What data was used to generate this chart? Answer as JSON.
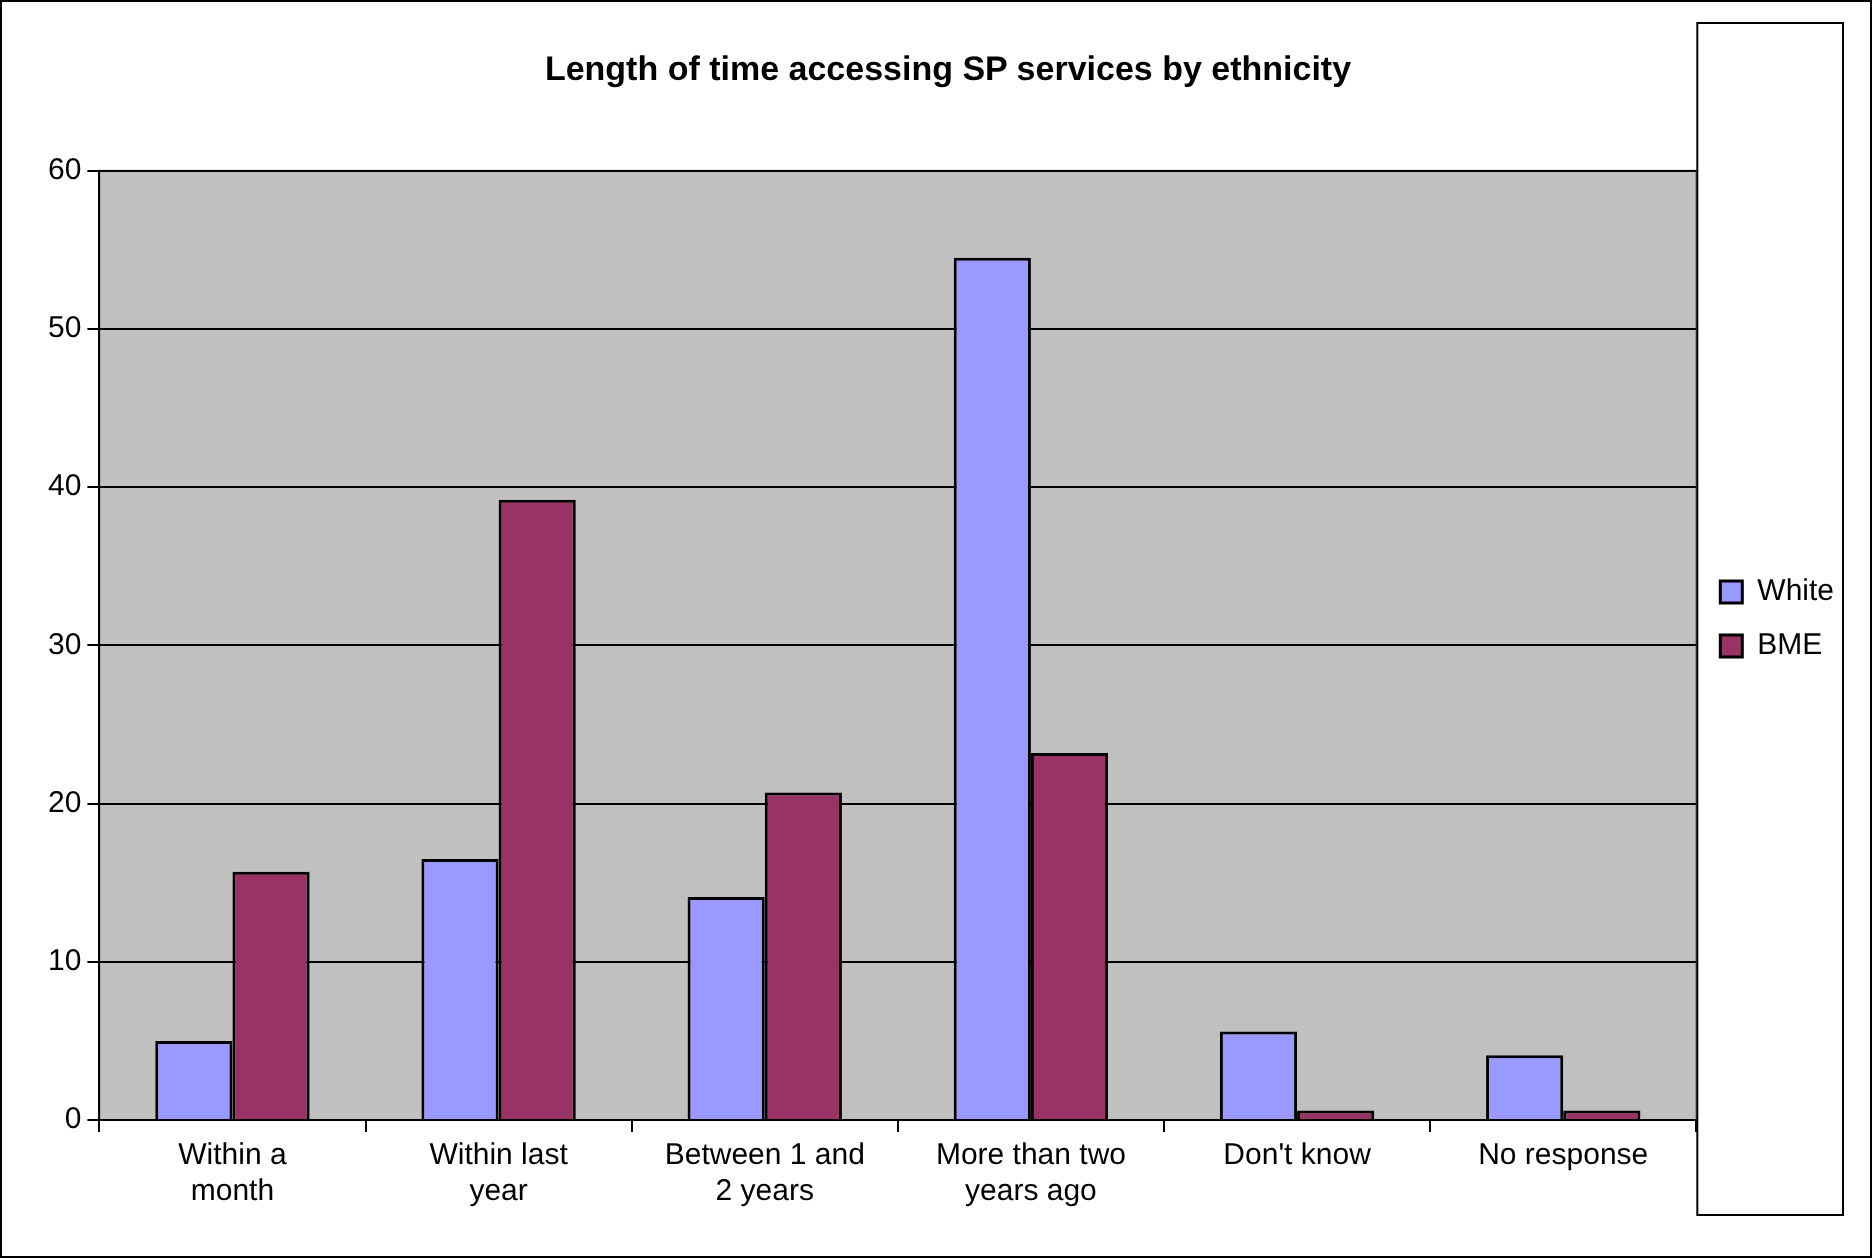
{
  "chart_data": {
    "type": "bar",
    "title": "Length of time accessing SP services by ethnicity",
    "categories": [
      "Within a month",
      "Within last year",
      "Between 1 and 2 years",
      "More than two years ago",
      "Don't know",
      "No response"
    ],
    "series": [
      {
        "name": "White",
        "color": "#9999ff",
        "values": [
          5,
          16.5,
          14.1,
          54.5,
          5.6,
          4.1
        ]
      },
      {
        "name": "BME",
        "color": "#993366",
        "values": [
          15.7,
          39.2,
          20.7,
          23.2,
          0.6,
          0.6
        ]
      }
    ],
    "ylim": [
      0,
      60
    ],
    "yticks": [
      0,
      10,
      20,
      30,
      40,
      50,
      60
    ],
    "grid": "y",
    "legend": "right"
  }
}
